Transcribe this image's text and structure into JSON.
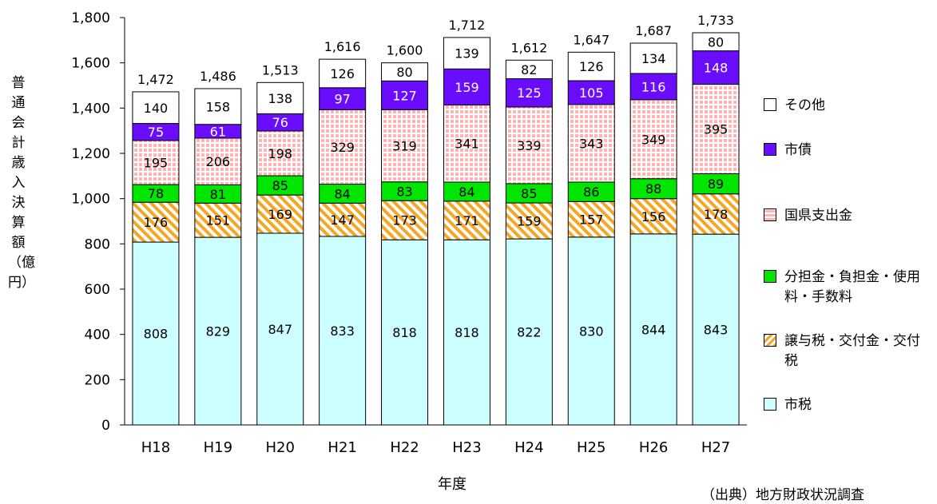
{
  "chart_data": {
    "type": "bar",
    "stacked": true,
    "xlabel": "年度",
    "ylabel": "普通会計歳入決算額（億円）",
    "source": "（出典）地方財政状況調査",
    "ylim": [
      0,
      1800
    ],
    "yticks": [
      "0",
      "200",
      "400",
      "600",
      "800",
      "1,000",
      "1,200",
      "1,400",
      "1,600",
      "1,800"
    ],
    "categories": [
      "H18",
      "H19",
      "H20",
      "H21",
      "H22",
      "H23",
      "H24",
      "H25",
      "H26",
      "H27"
    ],
    "totals": [
      1472,
      1486,
      1513,
      1616,
      1600,
      1712,
      1612,
      1647,
      1687,
      1733
    ],
    "total_labels": [
      "1,472",
      "1,486",
      "1,513",
      "1,616",
      "1,600",
      "1,712",
      "1,612",
      "1,647",
      "1,687",
      "1,733"
    ],
    "series": [
      {
        "name": "市税",
        "color": "#ccffff",
        "pattern": "solid",
        "values": [
          808,
          829,
          847,
          833,
          818,
          818,
          822,
          830,
          844,
          843
        ]
      },
      {
        "name": "譲与税・交付金・交付税",
        "color": "#f5a623",
        "pattern": "diagonal",
        "values": [
          176,
          151,
          169,
          147,
          173,
          171,
          159,
          157,
          156,
          178
        ]
      },
      {
        "name": "分担金・負担金・使用料・手数料",
        "color": "#00e600",
        "pattern": "solid",
        "values": [
          78,
          81,
          85,
          84,
          83,
          84,
          85,
          86,
          88,
          89
        ]
      },
      {
        "name": "国県支出金",
        "color": "#ffb3b3",
        "pattern": "grid",
        "values": [
          195,
          206,
          198,
          329,
          319,
          341,
          339,
          343,
          349,
          395
        ]
      },
      {
        "name": "市債",
        "color": "#6a0dff",
        "pattern": "solid",
        "values": [
          75,
          61,
          76,
          97,
          127,
          159,
          125,
          105,
          116,
          148
        ]
      },
      {
        "name": "その他",
        "color": "#ffffff",
        "pattern": "solid",
        "values": [
          140,
          158,
          138,
          126,
          80,
          139,
          82,
          126,
          134,
          80
        ]
      }
    ],
    "legend_order": [
      "その他",
      "市債",
      "国県支出金",
      "分担金・負担金・使用料・手数料",
      "譲与税・交付金・交付税",
      "市税"
    ],
    "legend_placement": "right",
    "grid": false
  }
}
